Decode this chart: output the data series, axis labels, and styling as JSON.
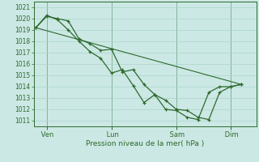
{
  "title": "Pression niveau de la mer( hPa )",
  "bg_color": "#cce8e4",
  "grid_color": "#aad4cc",
  "line_color": "#2d6a2d",
  "ylim": [
    1010.5,
    1021.5
  ],
  "yticks": [
    1011,
    1012,
    1013,
    1014,
    1015,
    1016,
    1017,
    1018,
    1019,
    1020,
    1021
  ],
  "xtick_labels": [
    " Ven",
    " Lun",
    " Sam",
    " Dim"
  ],
  "xtick_positions": [
    0.5,
    3.5,
    6.5,
    9.0
  ],
  "xlim": [
    -0.1,
    10.2
  ],
  "series1_x": [
    0.0,
    0.5,
    1.0,
    1.5,
    2.0,
    2.5,
    3.0,
    3.5,
    4.0,
    4.5,
    5.0,
    5.5,
    6.0,
    6.5,
    7.0,
    7.5,
    8.0,
    8.5,
    9.0,
    9.5
  ],
  "series1_y": [
    1019.2,
    1020.2,
    1020.0,
    1019.8,
    1018.2,
    1017.8,
    1017.2,
    1017.3,
    1015.3,
    1015.5,
    1014.2,
    1013.3,
    1012.8,
    1012.0,
    1011.9,
    1011.3,
    1011.1,
    1013.5,
    1014.0,
    1014.2
  ],
  "series2_x": [
    0.0,
    0.5,
    1.0,
    1.5,
    2.0,
    2.5,
    3.0,
    3.5,
    4.0,
    4.5,
    5.0,
    5.5,
    6.0,
    6.5,
    7.0,
    7.5,
    8.0,
    8.5,
    9.0,
    9.5
  ],
  "series2_y": [
    1019.2,
    1020.3,
    1019.9,
    1019.0,
    1018.0,
    1017.1,
    1016.5,
    1015.2,
    1015.5,
    1014.1,
    1012.6,
    1013.3,
    1012.0,
    1011.9,
    1011.3,
    1011.1,
    1013.5,
    1014.0,
    1014.0,
    1014.2
  ],
  "series3_x": [
    0.0,
    9.5
  ],
  "series3_y": [
    1019.2,
    1014.2
  ],
  "vline_positions": [
    0.5,
    3.5,
    6.5,
    9.0
  ]
}
